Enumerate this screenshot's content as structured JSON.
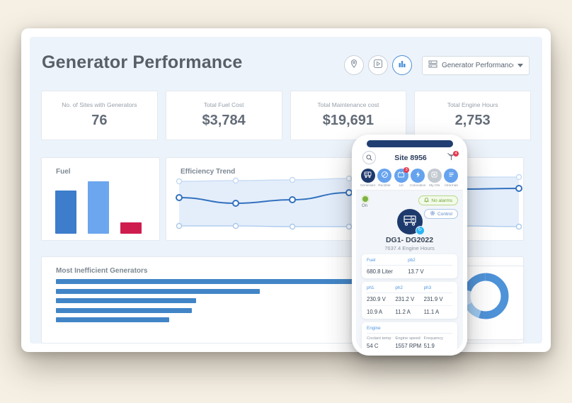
{
  "header": {
    "title": "Generator Performance",
    "dropdown_value": "Generator Performance",
    "action_icons": [
      "location-icon",
      "play-icon",
      "bar-chart-icon"
    ]
  },
  "stats": [
    {
      "label": "No. of Sites with Generators",
      "value": "76"
    },
    {
      "label": "Total Fuel Cost",
      "value": "$3,784"
    },
    {
      "label": "Total Maintenance cost",
      "value": "$19,691"
    },
    {
      "label": "Total Engine Hours",
      "value": "2,753"
    }
  ],
  "chart_data": [
    {
      "type": "bar",
      "title": "Fuel",
      "categories": [
        "bar-1",
        "bar-2",
        "bar-3"
      ],
      "values": [
        61,
        74,
        16
      ],
      "colors": [
        "#3d7dcc",
        "#6ca6ee",
        "#cf1c4e"
      ],
      "ylim": [
        0,
        80
      ],
      "grid": false
    },
    {
      "type": "line",
      "title": "Efficiency Trend",
      "x": [
        0,
        1,
        2,
        3,
        4,
        5,
        6
      ],
      "series": [
        {
          "name": "upper",
          "color": "#c3d9f3",
          "width": 1.3,
          "values": [
            79,
            80,
            81,
            83,
            84,
            85,
            85
          ]
        },
        {
          "name": "main",
          "color": "#3372bf",
          "width": 2,
          "values": [
            56,
            48,
            53,
            63,
            66,
            68,
            69
          ]
        },
        {
          "name": "lower",
          "color": "#a9c8ec",
          "width": 1.3,
          "values": [
            16,
            16,
            15,
            15,
            15,
            16,
            15
          ]
        }
      ],
      "band_fill": "#e4eefb",
      "ylim": [
        0,
        100
      ],
      "grid": false,
      "legend": "none"
    },
    {
      "type": "bar",
      "title": "Most Inefficient Generators",
      "orientation": "horizontal",
      "categories": [
        "gen-1",
        "gen-2",
        "gen-3",
        "gen-4",
        "gen-5"
      ],
      "values": [
        88,
        45,
        31,
        30,
        25
      ],
      "unit": "percent-of-track",
      "color": "#4285c7",
      "grid": false
    },
    {
      "type": "pie",
      "title": "",
      "donut": true,
      "segments": [
        {
          "name": "segment-1",
          "value": 55,
          "color": "#4e92d8"
        },
        {
          "name": "segment-2",
          "value": 13,
          "color": "#9ec9f0"
        },
        {
          "name": "segment-3",
          "value": 12,
          "color": "#cfe2f7"
        },
        {
          "name": "segment-4",
          "value": 20,
          "color": "#4e92d8"
        }
      ]
    }
  ],
  "phone": {
    "site_title": "Site 8956",
    "signal_badge": "4",
    "nav": [
      {
        "label": "Generator",
        "icon": "generator-icon",
        "state": "active"
      },
      {
        "label": "Rectifier",
        "icon": "rectifier-icon",
        "state": ""
      },
      {
        "label": "Lib",
        "icon": "lib-icon",
        "state": "",
        "badge": "3"
      },
      {
        "label": "Colocation",
        "icon": "colocation-icon",
        "state": ""
      },
      {
        "label": "My IOs",
        "icon": "my-ios-icon",
        "state": "disabled"
      },
      {
        "label": "Informati",
        "icon": "information-icon",
        "state": ""
      }
    ],
    "status": {
      "power": "On",
      "alarms": "No alarms",
      "control": "Control"
    },
    "device": {
      "name": "DG1- DG2022",
      "hours": "7637.4 Engine Hours"
    },
    "cards": [
      {
        "fields": [
          {
            "label": "Fuel",
            "value": "680.8 Liter"
          },
          {
            "label": "pb2",
            "value": "13.7 V"
          }
        ]
      },
      {
        "columns": [
          "ph1",
          "ph2",
          "ph3"
        ],
        "rows": [
          [
            "230.9 V",
            "231.2 V",
            "231.9 V"
          ],
          [
            "10.9 A",
            "11.2 A",
            "11.1 A"
          ]
        ]
      },
      {
        "title": "Engine",
        "fields": [
          {
            "label": "Coolant temp",
            "value": "54 C"
          },
          {
            "label": "Engine speed",
            "value": "1557 RPM"
          },
          {
            "label": "Frequency",
            "value": "51.9"
          }
        ]
      }
    ]
  },
  "colors": {
    "accent": "#4a90d9",
    "navy": "#1d3a6d",
    "panel_bg": "#edf3fa",
    "page_bg": "#f5efe4"
  }
}
